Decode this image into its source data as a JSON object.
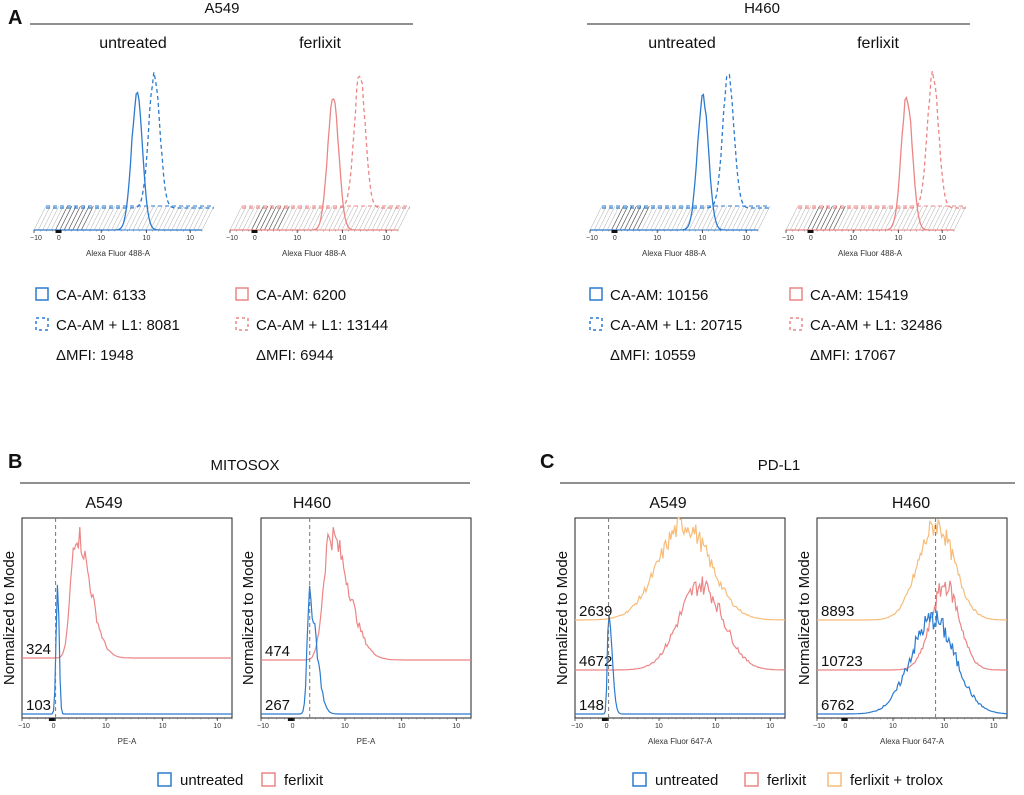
{
  "colors": {
    "blue": "#2b7bd0",
    "red": "#ec8585",
    "orange": "#f7bc7a",
    "axis": "#222222",
    "grid": "#888888"
  },
  "panels": {
    "a": {
      "letter": "A"
    },
    "b": {
      "letter": "B",
      "title": "MITOSOX"
    },
    "c": {
      "letter": "C",
      "title": "PD-L1"
    }
  },
  "cell_lines": {
    "a549": "A549",
    "h460": "H460"
  },
  "conditions": {
    "untreated": "untreated",
    "ferlixit": "ferlixit"
  },
  "ticks": {
    "neg3": "−10",
    "neg3_exp": "3",
    "zero": "0",
    "t3": "10",
    "t3_exp": "3",
    "t4": "10",
    "t4_exp": "4",
    "t5": "10",
    "t5_exp": "5"
  },
  "axis_labels": {
    "alexa488": "Alexa Fluor 488-A",
    "pe": "PE-A",
    "alexa647": "Alexa Fluor 647-A",
    "normalized": "Normalized to Mode"
  },
  "legend": {
    "untreated": "untreated",
    "ferlixit": "ferlixit",
    "ferlixit_trolox": "ferlixit + trolox"
  },
  "chart_data": [
    {
      "panel": "A",
      "type": "histogram-3d-offset",
      "title": "A549",
      "xlabel": "Alexa Fluor 488-A",
      "xscale": "biexponential",
      "x_ticks": [
        "-10^3",
        "0",
        "10^3",
        "10^4",
        "10^5"
      ],
      "subplots": [
        {
          "condition": "untreated",
          "color": "blue",
          "series": [
            {
              "name": "CA-AM",
              "style": "solid",
              "mfi": 6133,
              "label": "CA-AM: 6133"
            },
            {
              "name": "CA-AM + L1",
              "style": "dashed",
              "mfi": 8081,
              "label": "CA-AM + L1: 8081"
            }
          ],
          "delta_mfi": 1948,
          "delta_label": "ΔMFI: 1948"
        },
        {
          "condition": "ferlixit",
          "color": "red",
          "series": [
            {
              "name": "CA-AM",
              "style": "solid",
              "mfi": 6200,
              "label": "CA-AM: 6200"
            },
            {
              "name": "CA-AM + L1",
              "style": "dashed",
              "mfi": 13144,
              "label": "CA-AM + L1: 13144"
            }
          ],
          "delta_mfi": 6944,
          "delta_label": "ΔMFI: 6944"
        }
      ]
    },
    {
      "panel": "A",
      "type": "histogram-3d-offset",
      "title": "H460",
      "xlabel": "Alexa Fluor 488-A",
      "xscale": "biexponential",
      "x_ticks": [
        "-10^3",
        "0",
        "10^3",
        "10^4",
        "10^5"
      ],
      "subplots": [
        {
          "condition": "untreated",
          "color": "blue",
          "series": [
            {
              "name": "CA-AM",
              "style": "solid",
              "mfi": 10156,
              "label": "CA-AM: 10156"
            },
            {
              "name": "CA-AM + L1",
              "style": "dashed",
              "mfi": 20715,
              "label": "CA-AM + L1: 20715"
            }
          ],
          "delta_mfi": 10559,
          "delta_label": "ΔMFI: 10559"
        },
        {
          "condition": "ferlixit",
          "color": "red",
          "series": [
            {
              "name": "CA-AM",
              "style": "solid",
              "mfi": 15419,
              "label": "CA-AM: 15419"
            },
            {
              "name": "CA-AM + L1",
              "style": "dashed",
              "mfi": 32486,
              "label": "CA-AM + L1: 32486"
            }
          ],
          "delta_mfi": 17067,
          "delta_label": "ΔMFI: 17067"
        }
      ]
    },
    {
      "panel": "B",
      "type": "histogram-offset",
      "title": "MITOSOX",
      "xlabel": "PE-A",
      "ylabel": "Normalized to Mode",
      "x_ticks": [
        "-10^3",
        "0",
        "10^3",
        "10^4",
        "10^5"
      ],
      "subplots": [
        {
          "cell_line": "A549",
          "series": [
            {
              "name": "untreated",
              "color": "blue",
              "value": 103,
              "label": "103"
            },
            {
              "name": "ferlixit",
              "color": "red",
              "value": 324,
              "label": "324"
            }
          ]
        },
        {
          "cell_line": "H460",
          "series": [
            {
              "name": "untreated",
              "color": "blue",
              "value": 267,
              "label": "267"
            },
            {
              "name": "ferlixit",
              "color": "red",
              "value": 474,
              "label": "474"
            }
          ]
        }
      ],
      "legend": [
        "untreated",
        "ferlixit"
      ]
    },
    {
      "panel": "C",
      "type": "histogram-offset",
      "title": "PD-L1",
      "xlabel": "Alexa Fluor 647-A",
      "ylabel": "Normalized to Mode",
      "x_ticks": [
        "-10^3",
        "0",
        "10^3",
        "10^4",
        "10^5"
      ],
      "subplots": [
        {
          "cell_line": "A549",
          "series": [
            {
              "name": "untreated",
              "color": "blue",
              "value": 148,
              "label": "148"
            },
            {
              "name": "ferlixit",
              "color": "red",
              "value": 4672,
              "label": "4672"
            },
            {
              "name": "ferlixit + trolox",
              "color": "orange",
              "value": 2639,
              "label": "2639"
            }
          ]
        },
        {
          "cell_line": "H460",
          "series": [
            {
              "name": "untreated",
              "color": "blue",
              "value": 6762,
              "label": "6762"
            },
            {
              "name": "ferlixit",
              "color": "red",
              "value": 10723,
              "label": "10723"
            },
            {
              "name": "ferlixit + trolox",
              "color": "orange",
              "value": 8893,
              "label": "8893"
            }
          ]
        }
      ],
      "legend": [
        "untreated",
        "ferlixit",
        "ferlixit + trolox"
      ]
    }
  ]
}
